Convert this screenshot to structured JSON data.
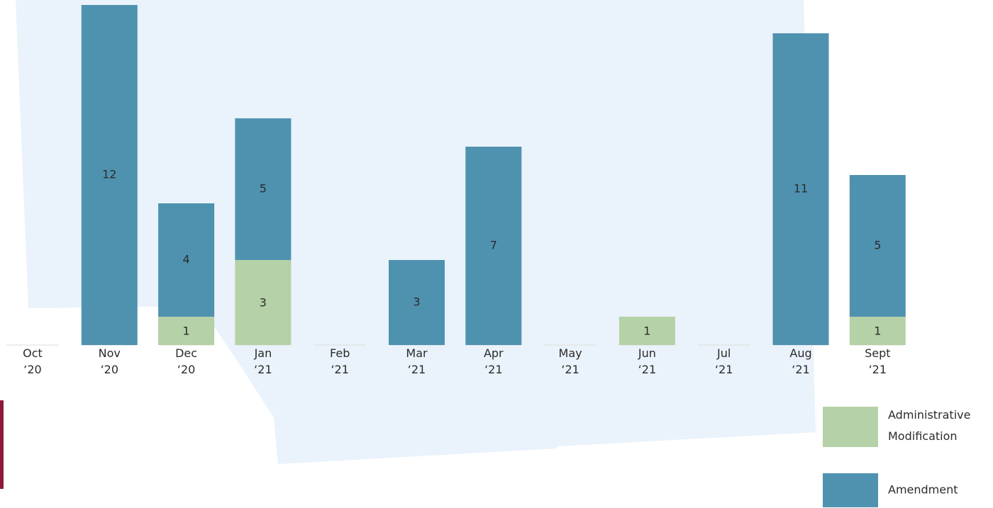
{
  "chart_data": {
    "type": "stacked_bar",
    "categories": [
      "Oct ‘20",
      "Nov ‘20",
      "Dec ‘20",
      "Jan ‘21",
      "Feb ‘21",
      "Mar ‘21",
      "Apr ‘21",
      "May ‘21",
      "Jun ‘21",
      "Jul ‘21",
      "Aug ‘21",
      "Sept ‘21"
    ],
    "series": [
      {
        "name": "Administrative Modification",
        "color": "#b5d1a7",
        "values": [
          null,
          null,
          1,
          3,
          null,
          null,
          null,
          null,
          1,
          null,
          null,
          1
        ]
      },
      {
        "name": "Amendment",
        "color": "#4f92b0",
        "values": [
          null,
          12,
          4,
          5,
          null,
          3,
          7,
          null,
          null,
          null,
          11,
          5
        ]
      }
    ],
    "ylim": [
      0,
      12
    ]
  }
}
